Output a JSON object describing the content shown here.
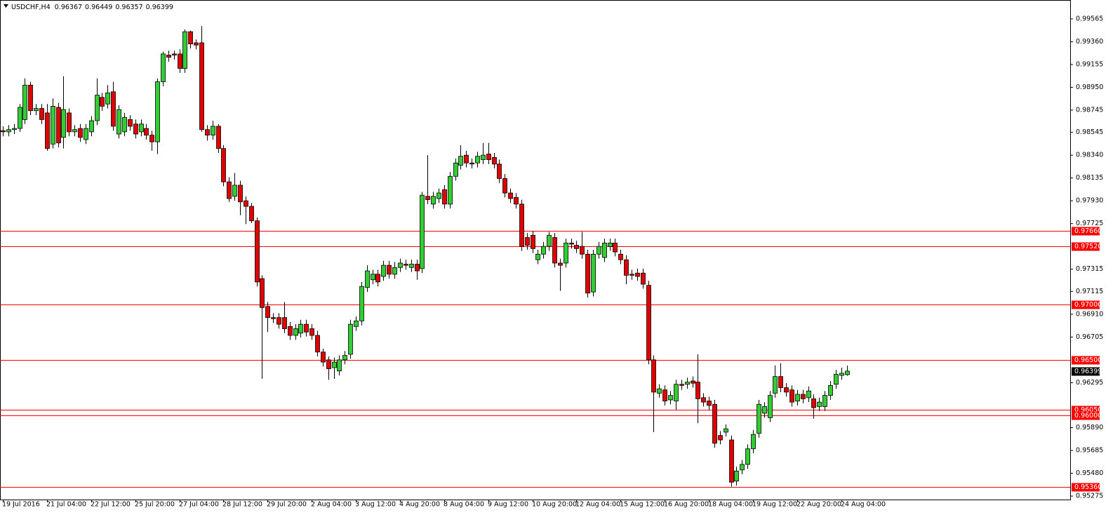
{
  "chart_data": {
    "type": "candlestick",
    "title": "USDCHF,H4",
    "categories": [
      "19 Jul 2016",
      null,
      null,
      null,
      null,
      null,
      null,
      null,
      "21 Jul 04:00",
      null,
      null,
      null,
      null,
      null,
      null,
      null,
      "22 Jul 12:00",
      null,
      null,
      null,
      null,
      null,
      null,
      null,
      "25 Jul 20:00",
      null,
      null,
      null,
      null,
      null,
      null,
      null,
      "27 Jul 04:00",
      null,
      null,
      null,
      null,
      null,
      null,
      null,
      "28 Jul 12:00",
      null,
      null,
      null,
      null,
      null,
      null,
      null,
      "29 Jul 20:00",
      null,
      null,
      null,
      null,
      null,
      null,
      null,
      "2 Aug 04:00",
      null,
      null,
      null,
      null,
      null,
      null,
      null,
      "3 Aug 12:00",
      null,
      null,
      null,
      null,
      null,
      null,
      null,
      "4 Aug 20:00",
      null,
      null,
      null,
      null,
      null,
      null,
      null,
      "8 Aug 04:00",
      null,
      null,
      null,
      null,
      null,
      null,
      null,
      "9 Aug 12:00",
      null,
      null,
      null,
      null,
      null,
      null,
      null,
      "10 Aug 20:00",
      null,
      null,
      null,
      null,
      null,
      null,
      null,
      "12 Aug 04:00",
      null,
      null,
      null,
      null,
      null,
      null,
      null,
      "15 Aug 12:00",
      null,
      null,
      null,
      null,
      null,
      null,
      null,
      "16 Aug 20:00",
      null,
      null,
      null,
      null,
      null,
      null,
      null,
      "18 Aug 04:00",
      null,
      null,
      null,
      null,
      null,
      null,
      null,
      "19 Aug 12:00",
      null,
      null,
      null,
      null,
      null,
      null,
      null,
      "22 Aug 20:00",
      null,
      null,
      null,
      null,
      null,
      null,
      null,
      "24 Aug 04:00",
      null
    ],
    "open": [
      0.9856,
      0.9855,
      0.9857,
      0.9858,
      0.9866,
      0.9897,
      0.9874,
      0.9876,
      0.9872,
      0.9844,
      0.9877,
      0.985,
      0.9872,
      0.9855,
      0.9858,
      0.9848,
      0.9855,
      0.9865,
      0.9886,
      0.988,
      0.9891,
      0.9853,
      0.9855,
      0.9866,
      0.9862,
      0.9855,
      0.9858,
      0.9852,
      0.9846,
      0.99,
      0.9924,
      0.9925,
      0.9925,
      0.9912,
      0.9945,
      0.9935,
      0.9935,
      0.9857,
      0.9852,
      0.986,
      0.984,
      0.981,
      0.9797,
      0.9807,
      0.9793,
      0.9788,
      0.9775,
      0.9723,
      0.9698,
      0.9688,
      0.9688,
      0.9688,
      0.968,
      0.9672,
      0.9674,
      0.9682,
      0.9678,
      0.9672,
      0.9657,
      0.965,
      0.9643,
      0.964,
      0.965,
      0.9655,
      0.968,
      0.9685,
      0.9715,
      0.9722,
      0.9727,
      0.9725,
      0.9735,
      0.9727,
      0.9733,
      0.9736,
      0.9733,
      0.9736,
      0.9732,
      0.9797,
      0.979,
      0.9795,
      0.9803,
      0.979,
      0.9815,
      0.9825,
      0.9834,
      0.9827,
      0.9827,
      0.983,
      0.9835,
      0.9832,
      0.9826,
      0.9813,
      0.98,
      0.9796,
      0.979,
      0.976,
      0.9762,
      0.974,
      0.9745,
      0.9752,
      0.976,
      0.9737,
      0.9737,
      0.9755,
      0.9753,
      0.9752,
      0.9745,
      0.9711,
      0.9745,
      0.9742,
      0.9752,
      0.9755,
      0.9745,
      0.974,
      0.9727,
      0.9728,
      0.9728,
      0.9717,
      0.965,
      0.962,
      0.9623,
      0.9614,
      0.9613,
      0.9628,
      0.9628,
      0.9631,
      0.963,
      0.9616,
      0.9613,
      0.961,
      0.9582,
      0.9585,
      0.9578,
      0.9541,
      0.9551,
      0.9556,
      0.957,
      0.9584,
      0.9602,
      0.9598,
      0.962,
      0.9635,
      0.9625,
      0.9623,
      0.9613,
      0.9619,
      0.9616,
      0.9615,
      0.9608,
      0.9608,
      0.9618,
      0.9628,
      0.9636,
      0.96367
    ],
    "high": [
      0.986,
      0.9861,
      0.9862,
      0.988,
      0.9903,
      0.99,
      0.988,
      0.988,
      0.988,
      0.9885,
      0.9881,
      0.9905,
      0.9876,
      0.9861,
      0.9862,
      0.9862,
      0.9869,
      0.9903,
      0.989,
      0.9897,
      0.99,
      0.9879,
      0.9872,
      0.987,
      0.9866,
      0.9866,
      0.9862,
      0.9856,
      0.9903,
      0.9927,
      0.9928,
      0.9928,
      0.9929,
      0.9947,
      0.9946,
      0.9938,
      0.995,
      0.9861,
      0.9865,
      0.9862,
      0.9843,
      0.9814,
      0.9818,
      0.9811,
      0.9797,
      0.9791,
      0.9778,
      0.9726,
      0.9702,
      0.9692,
      0.9692,
      0.9702,
      0.9684,
      0.9682,
      0.9686,
      0.9686,
      0.9682,
      0.9676,
      0.966,
      0.9653,
      0.9652,
      0.9654,
      0.9658,
      0.9686,
      0.9689,
      0.972,
      0.9735,
      0.9731,
      0.9731,
      0.9739,
      0.9739,
      0.9738,
      0.9741,
      0.974,
      0.974,
      0.974,
      0.9801,
      0.9834,
      0.9801,
      0.9804,
      0.9807,
      0.9819,
      0.9831,
      0.9843,
      0.9838,
      0.9831,
      0.9837,
      0.9845,
      0.9845,
      0.9836,
      0.983,
      0.9817,
      0.9804,
      0.98,
      0.9794,
      0.9764,
      0.9766,
      0.9749,
      0.9756,
      0.9765,
      0.9764,
      0.9741,
      0.9759,
      0.9759,
      0.9757,
      0.9765,
      0.9749,
      0.9749,
      0.9756,
      0.9759,
      0.9759,
      0.9759,
      0.9749,
      0.9744,
      0.9731,
      0.9732,
      0.9732,
      0.9721,
      0.9654,
      0.9628,
      0.9627,
      0.9622,
      0.9632,
      0.9632,
      0.9634,
      0.9635,
      0.9655,
      0.962,
      0.9617,
      0.9614,
      0.9586,
      0.9592,
      0.9582,
      0.9554,
      0.956,
      0.9574,
      0.9587,
      0.9614,
      0.9612,
      0.9622,
      0.9645,
      0.9647,
      0.9629,
      0.9627,
      0.9623,
      0.9623,
      0.9626,
      0.9619,
      0.9616,
      0.9622,
      0.9631,
      0.9641,
      0.9643,
      0.96449
    ],
    "low": [
      0.9851,
      0.9851,
      0.9853,
      0.9855,
      0.9862,
      0.987,
      0.987,
      0.9862,
      0.9838,
      0.984,
      0.9841,
      0.984,
      0.9851,
      0.9851,
      0.9846,
      0.9844,
      0.9851,
      0.9861,
      0.9874,
      0.9876,
      0.9856,
      0.9849,
      0.9851,
      0.9856,
      0.9849,
      0.9851,
      0.9848,
      0.9838,
      0.9835,
      0.9896,
      0.9918,
      0.992,
      0.9908,
      0.9908,
      0.993,
      0.9929,
      0.9855,
      0.9847,
      0.9848,
      0.9836,
      0.9806,
      0.9792,
      0.9793,
      0.978,
      0.9772,
      0.9773,
      0.9716,
      0.9633,
      0.9675,
      0.9683,
      0.9678,
      0.9674,
      0.9668,
      0.9668,
      0.967,
      0.9671,
      0.9668,
      0.9653,
      0.9644,
      0.9632,
      0.9633,
      0.9636,
      0.9646,
      0.9651,
      0.9676,
      0.9681,
      0.9711,
      0.9718,
      0.9716,
      0.9721,
      0.9723,
      0.9723,
      0.9729,
      0.9731,
      0.9729,
      0.9722,
      0.9728,
      0.979,
      0.9786,
      0.9791,
      0.9786,
      0.9786,
      0.9811,
      0.9821,
      0.9823,
      0.9822,
      0.9823,
      0.9826,
      0.9826,
      0.9822,
      0.9809,
      0.9796,
      0.9791,
      0.9786,
      0.9748,
      0.9749,
      0.9746,
      0.9736,
      0.9741,
      0.9748,
      0.9733,
      0.9712,
      0.9733,
      0.975,
      0.9746,
      0.9741,
      0.9706,
      0.9707,
      0.9741,
      0.9738,
      0.9748,
      0.9743,
      0.9736,
      0.9718,
      0.9722,
      0.9721,
      0.9714,
      0.9646,
      0.9585,
      0.9616,
      0.9609,
      0.961,
      0.9605,
      0.9623,
      0.9624,
      0.9625,
      0.9593,
      0.9608,
      0.9605,
      0.9571,
      0.9574,
      0.9581,
      0.9536,
      0.9537,
      0.9547,
      0.9552,
      0.9566,
      0.958,
      0.9598,
      0.9594,
      0.9616,
      0.9621,
      0.9617,
      0.9608,
      0.9609,
      0.9611,
      0.9612,
      0.9597,
      0.9604,
      0.9604,
      0.9614,
      0.9624,
      0.9632,
      0.96357
    ],
    "close": [
      0.9855,
      0.9857,
      0.9858,
      0.9877,
      0.9897,
      0.9874,
      0.9876,
      0.9866,
      0.984,
      0.9878,
      0.9845,
      0.9875,
      0.9855,
      0.9857,
      0.985,
      0.9858,
      0.9865,
      0.9888,
      0.9878,
      0.989,
      0.986,
      0.9875,
      0.9868,
      0.986,
      0.9853,
      0.9862,
      0.9852,
      0.9846,
      0.99,
      0.9925,
      0.9922,
      0.9924,
      0.9912,
      0.9945,
      0.9934,
      0.9933,
      0.9857,
      0.9852,
      0.986,
      0.984,
      0.981,
      0.9795,
      0.9807,
      0.9792,
      0.9788,
      0.9775,
      0.972,
      0.9697,
      0.9688,
      0.9687,
      0.9682,
      0.9678,
      0.9672,
      0.9678,
      0.9682,
      0.9675,
      0.9672,
      0.9657,
      0.9648,
      0.9642,
      0.9648,
      0.965,
      0.9654,
      0.9682,
      0.9685,
      0.9716,
      0.973,
      0.9727,
      0.972,
      0.9735,
      0.9727,
      0.9733,
      0.9737,
      0.9735,
      0.9736,
      0.973,
      0.9798,
      0.9794,
      0.9797,
      0.98,
      0.979,
      0.9815,
      0.9827,
      0.9833,
      0.9827,
      0.9826,
      0.9833,
      0.9834,
      0.983,
      0.9826,
      0.9813,
      0.98,
      0.9795,
      0.979,
      0.9752,
      0.9753,
      0.975,
      0.9745,
      0.9752,
      0.9762,
      0.9737,
      0.9735,
      0.9755,
      0.9754,
      0.975,
      0.9745,
      0.971,
      0.9745,
      0.9752,
      0.9755,
      0.9755,
      0.9747,
      0.974,
      0.9726,
      0.9726,
      0.9725,
      0.9718,
      0.965,
      0.9621,
      0.9624,
      0.9613,
      0.9618,
      0.9628,
      0.9627,
      0.963,
      0.9629,
      0.9615,
      0.9612,
      0.9609,
      0.9575,
      0.9578,
      0.9588,
      0.954,
      0.955,
      0.9556,
      0.957,
      0.9583,
      0.961,
      0.9608,
      0.9618,
      0.9635,
      0.9625,
      0.9621,
      0.9612,
      0.9619,
      0.9615,
      0.9622,
      0.9607,
      0.9612,
      0.9618,
      0.9627,
      0.9637,
      0.9638,
      0.96399
    ],
    "up_color": "#32cd32",
    "down_color": "#e00000",
    "level_color": "#ff0000",
    "levels": [
      {
        "value": 0.9766,
        "label": "0.97660"
      },
      {
        "value": 0.9752,
        "label": "0.97520"
      },
      {
        "value": 0.97,
        "label": "0.97000"
      },
      {
        "value": 0.965,
        "label": "0.96500"
      },
      {
        "value": 0.9605,
        "label": "0.96050"
      },
      {
        "value": 0.96,
        "label": "0.96000"
      },
      {
        "value": 0.9536,
        "label": "0.95360"
      }
    ],
    "ylim": [
      0.95244,
      0.99735
    ],
    "yticks": [
      0.99565,
      {
        "value": 0.9936,
        "label": "0.99360"
      },
      0.99155,
      {
        "value": 0.9895,
        "label": "0.98950"
      },
      0.98745,
      0.98545,
      {
        "value": 0.9834,
        "label": "0.98340"
      },
      0.98135,
      {
        "value": 0.9793,
        "label": "0.97930"
      },
      0.97725,
      0.97315,
      0.97115,
      {
        "value": 0.9691,
        "label": "0.96910"
      },
      0.96705,
      0.96295,
      {
        "value": 0.9589,
        "label": "0.95890"
      },
      0.95685,
      {
        "value": 0.9548,
        "label": "0.95480"
      },
      0.95275
    ]
  }
}
